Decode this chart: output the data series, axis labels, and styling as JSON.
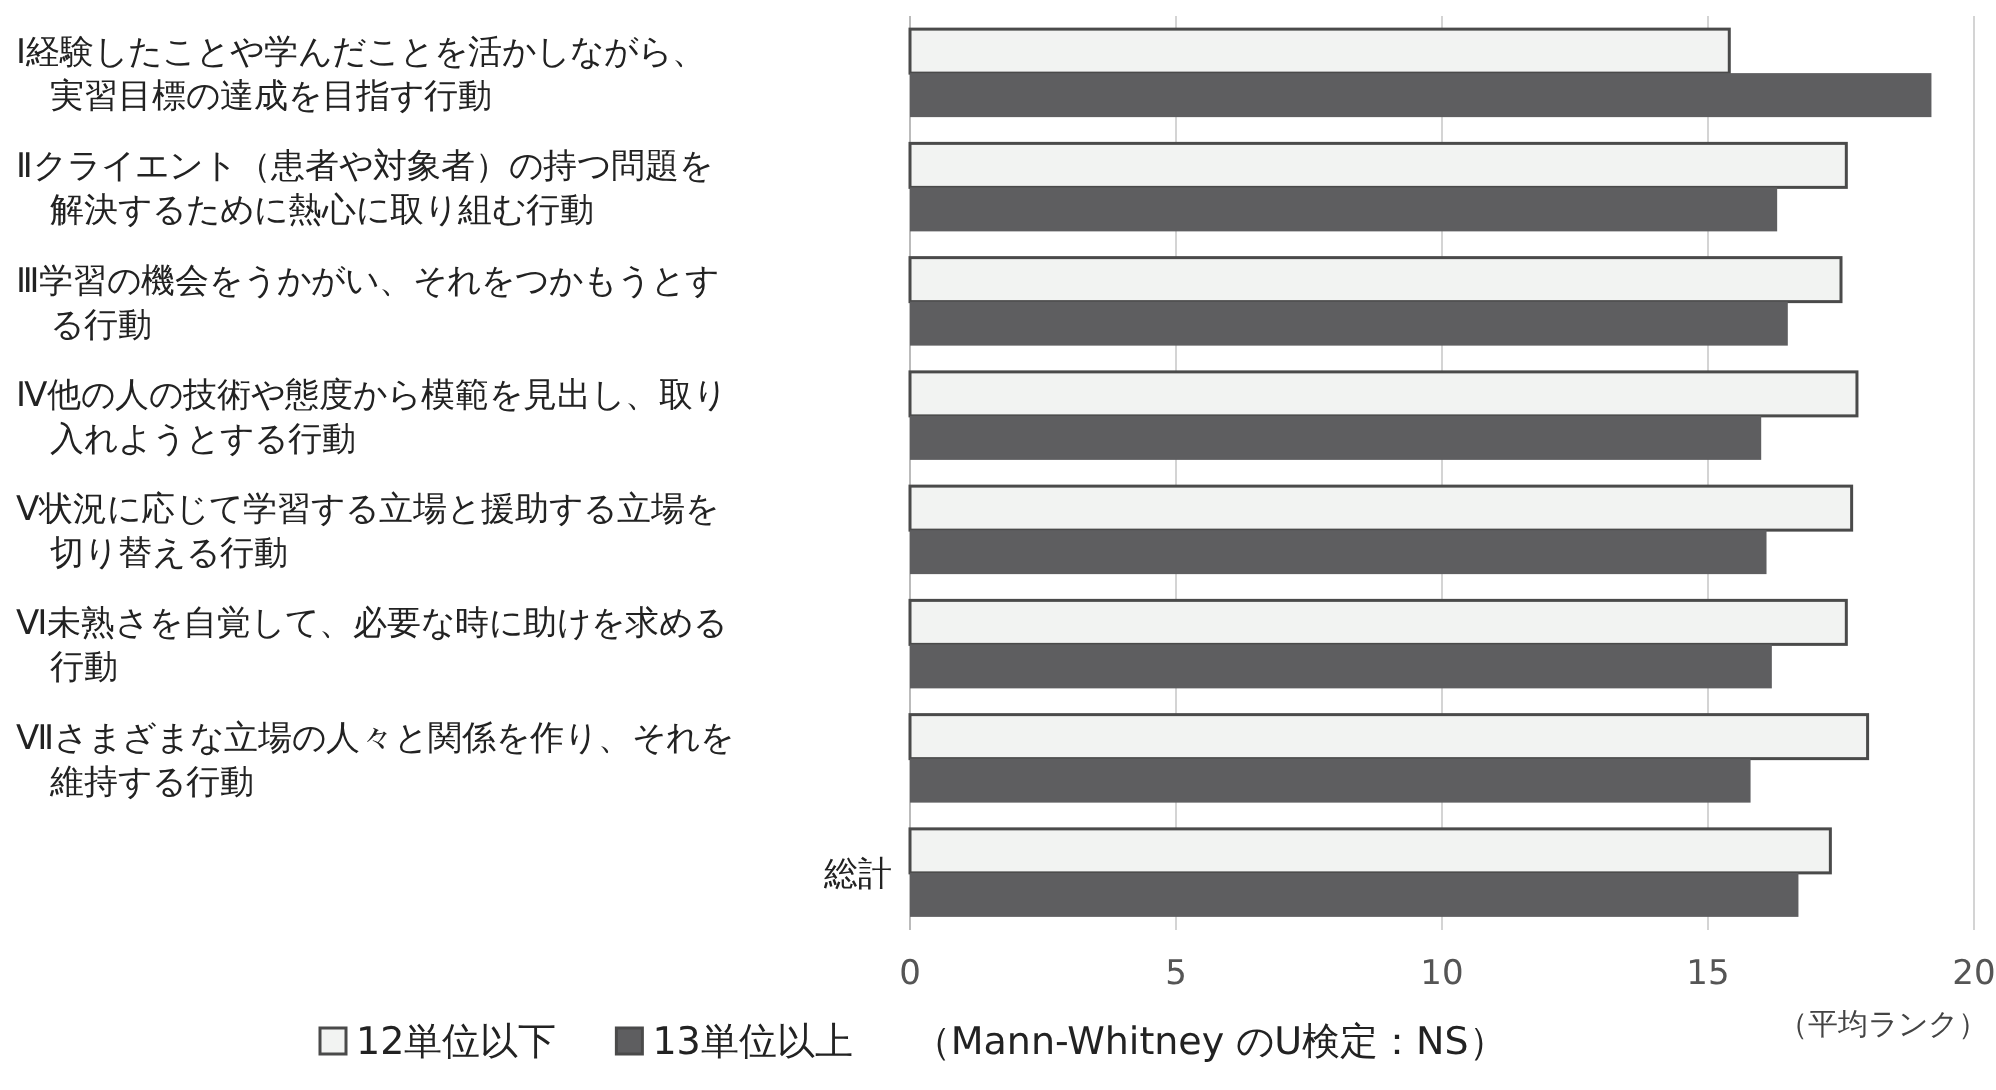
{
  "chart_data": {
    "type": "bar",
    "orientation": "horizontal",
    "categories": [
      "Ⅰ経験したことや学んだことを活かしながら、実習目標の達成を目指す行動",
      "Ⅱクライエント（患者や対象者）の持つ問題を解決するために熱心に取り組む行動",
      "Ⅲ学習の機会をうかがい、それをつかもうとする行動",
      "Ⅳ他の人の技術や態度から模範を見出し、取り入れようとする行動",
      "Ⅴ状況に応じて学習する立場と援助する立場を切り替える行動",
      "Ⅵ未熟さを自覚して、必要な時に助けを求める行動",
      "Ⅶさまざまな立場の人々と関係を作り、それを維持する行動",
      "総計"
    ],
    "series": [
      {
        "name": "12単位以下",
        "color": "#f2f3f2",
        "values": [
          15.4,
          17.6,
          17.5,
          17.8,
          17.7,
          17.6,
          18.0,
          17.3
        ]
      },
      {
        "name": "13単位以上",
        "color": "#5e5e60",
        "values": [
          19.2,
          16.3,
          16.5,
          16.0,
          16.1,
          16.2,
          15.8,
          16.7
        ]
      }
    ],
    "xlim": [
      0,
      20
    ],
    "xticks": [
      0,
      5,
      10,
      15,
      20
    ],
    "xlabel": "（平均ランク）",
    "grid": "x",
    "legend": "bottom",
    "annotations": [
      "（Mann-Whitney のU検定：NS）"
    ]
  }
}
